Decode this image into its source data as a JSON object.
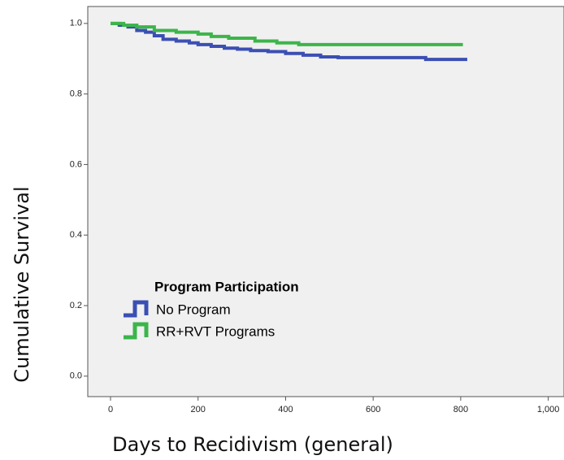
{
  "chart_data": {
    "type": "step",
    "xlabel": "Days to Recidivism (general)",
    "ylabel": "Cumulative Survival",
    "legend_title": "Program Participation",
    "legend": "lower left",
    "xlim": [
      -52,
      1036
    ],
    "ylim": [
      -0.058,
      1.048
    ],
    "xticks": [
      0,
      200,
      400,
      600,
      800,
      {
        "value": 1000,
        "label": "1,000"
      }
    ],
    "yticks": [
      {
        "value": 0,
        "label": "0.0"
      },
      {
        "value": 0.2,
        "label": "0.2"
      },
      {
        "value": 0.4,
        "label": "0.4"
      },
      {
        "value": 0.6,
        "label": "0.6"
      },
      {
        "value": 0.8,
        "label": "0.8"
      },
      {
        "value": 1,
        "label": "1.0"
      }
    ],
    "series": [
      {
        "name": "No Program",
        "color": "#3b4fb3",
        "x": [
          0,
          20,
          40,
          60,
          80,
          100,
          120,
          150,
          180,
          200,
          230,
          260,
          290,
          320,
          360,
          400,
          440,
          480,
          520,
          600,
          720,
          815
        ],
        "values": [
          1.0,
          0.995,
          0.99,
          0.98,
          0.975,
          0.965,
          0.955,
          0.95,
          0.945,
          0.94,
          0.935,
          0.93,
          0.927,
          0.923,
          0.92,
          0.915,
          0.91,
          0.905,
          0.903,
          0.903,
          0.898,
          0.898
        ]
      },
      {
        "name": "RR+RVT Programs",
        "color": "#3cb54a",
        "x": [
          0,
          30,
          60,
          100,
          150,
          200,
          230,
          270,
          330,
          380,
          430,
          805
        ],
        "values": [
          1.0,
          0.995,
          0.99,
          0.98,
          0.975,
          0.97,
          0.963,
          0.958,
          0.95,
          0.945,
          0.94,
          0.94
        ]
      }
    ]
  }
}
